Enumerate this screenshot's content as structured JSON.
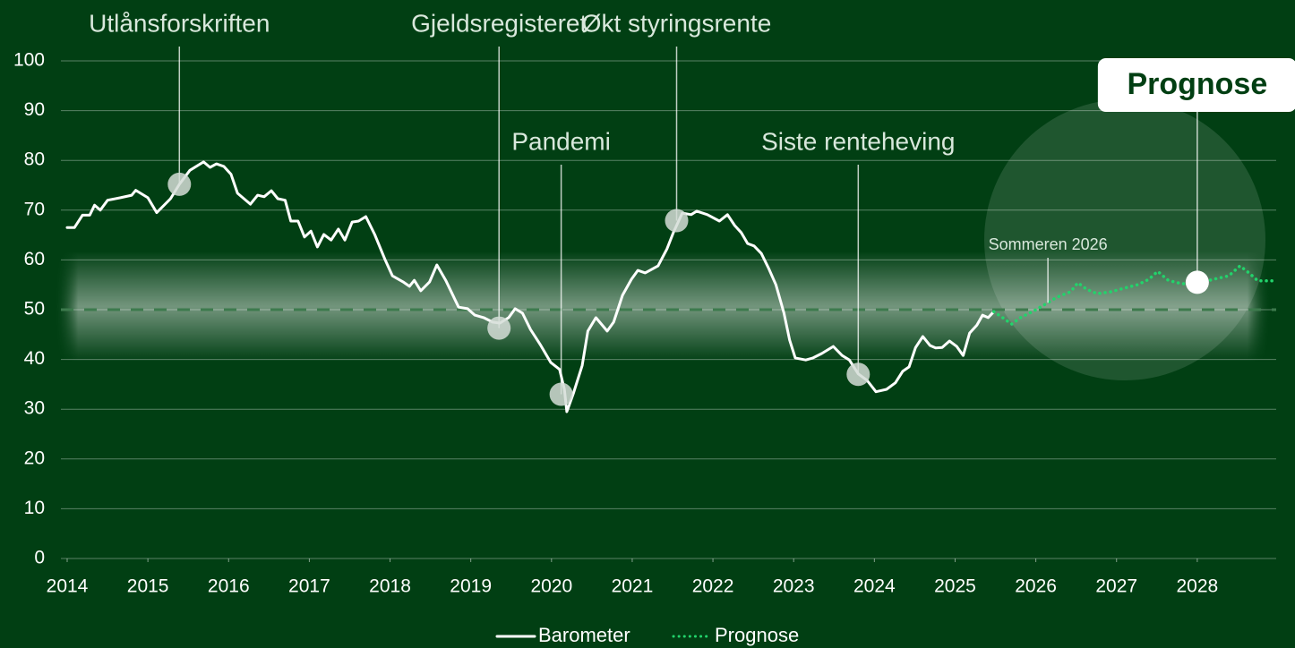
{
  "chart_data": {
    "type": "line",
    "xlim": [
      2014,
      2029
    ],
    "xticks": [
      2014,
      2015,
      2016,
      2017,
      2018,
      2019,
      2020,
      2021,
      2022,
      2023,
      2024,
      2025,
      2026,
      2027,
      2028
    ],
    "ylim": [
      0,
      100
    ],
    "yticks": [
      0,
      10,
      20,
      30,
      40,
      50,
      60,
      70,
      80,
      90,
      100
    ],
    "grid": true,
    "reference_line": 50,
    "series": [
      {
        "name": "Barometer",
        "color": "#ffffff",
        "style": "solid",
        "x": [
          2014.0,
          2014.09,
          2014.19,
          2014.28,
          2014.34,
          2014.41,
          2014.5,
          2014.66,
          2014.8,
          2014.85,
          2015.0,
          2015.11,
          2015.28,
          2015.39,
          2015.52,
          2015.69,
          2015.77,
          2015.85,
          2015.94,
          2016.03,
          2016.11,
          2016.27,
          2016.36,
          2016.44,
          2016.53,
          2016.61,
          2016.7,
          2016.77,
          2016.86,
          2016.94,
          2017.02,
          2017.1,
          2017.18,
          2017.27,
          2017.36,
          2017.44,
          2017.53,
          2017.61,
          2017.7,
          2017.81,
          2017.94,
          2018.03,
          2018.16,
          2018.24,
          2018.3,
          2018.38,
          2018.49,
          2018.58,
          2018.69,
          2018.85,
          2018.96,
          2019.05,
          2019.16,
          2019.27,
          2019.36,
          2019.47,
          2019.55,
          2019.64,
          2019.74,
          2019.86,
          2019.99,
          2020.1,
          2020.16,
          2020.19,
          2020.27,
          2020.38,
          2020.45,
          2020.55,
          2020.69,
          2020.77,
          2020.88,
          2020.99,
          2021.07,
          2021.16,
          2021.32,
          2021.43,
          2021.51,
          2021.62,
          2021.73,
          2021.8,
          2021.93,
          2022.08,
          2022.18,
          2022.27,
          2022.35,
          2022.43,
          2022.51,
          2022.6,
          2022.69,
          2022.78,
          2022.88,
          2022.95,
          2023.02,
          2023.15,
          2023.24,
          2023.35,
          2023.49,
          2023.6,
          2023.69,
          2023.8,
          2023.91,
          2024.02,
          2024.15,
          2024.26,
          2024.35,
          2024.43,
          2024.51,
          2024.6,
          2024.69,
          2024.76,
          2024.84,
          2024.93,
          2025.02,
          2025.1,
          2025.18,
          2025.27,
          2025.34,
          2025.41,
          2025.48
        ],
        "values": [
          66.5,
          66.5,
          69,
          69,
          71,
          70,
          72,
          72.5,
          73,
          74,
          72.5,
          69.5,
          72.3,
          75.2,
          78,
          79.7,
          78.6,
          79.3,
          78.8,
          77.2,
          73.4,
          71.2,
          73,
          72.7,
          73.9,
          72.3,
          72,
          67.8,
          67.8,
          64.6,
          65.8,
          62.6,
          65.1,
          64,
          66.2,
          64,
          67.6,
          67.8,
          68.7,
          65.1,
          60,
          56.8,
          55.6,
          54.7,
          55.9,
          53.8,
          55.6,
          59,
          55.9,
          50.5,
          50.2,
          48.9,
          48.4,
          47.5,
          47.3,
          48.4,
          50.2,
          49.3,
          46,
          43,
          39.4,
          38,
          34,
          29.5,
          33.1,
          38.8,
          45.7,
          48.4,
          45.7,
          47.5,
          52.9,
          56.1,
          57.9,
          57.4,
          58.8,
          62.2,
          65.5,
          69.4,
          69.1,
          69.8,
          69.1,
          67.8,
          69.1,
          66.9,
          65.5,
          63.3,
          62.8,
          61.3,
          58.3,
          55,
          49.3,
          43.9,
          40.3,
          39.9,
          40.3,
          41.2,
          42.6,
          40.8,
          39.9,
          37.1,
          35.8,
          33.5,
          34,
          35.3,
          37.6,
          38.5,
          42.4,
          44.6,
          42.8,
          42.3,
          42.4,
          43.7,
          42.6,
          40.8,
          45.3,
          46.9,
          48.9,
          48.4,
          49.6
        ]
      },
      {
        "name": "Prognose",
        "color": "#22d36b",
        "style": "dotted",
        "x": [
          2025.48,
          2025.59,
          2025.7,
          2025.81,
          2025.98,
          2026.15,
          2026.26,
          2026.43,
          2026.52,
          2026.63,
          2026.76,
          2026.93,
          2027.09,
          2027.26,
          2027.4,
          2027.51,
          2027.64,
          2027.81,
          2028.03,
          2028.2,
          2028.39,
          2028.53,
          2028.64,
          2028.75,
          2028.96
        ],
        "values": [
          49.6,
          48.4,
          47.1,
          48.4,
          49.8,
          51.4,
          52.5,
          53.6,
          55.4,
          54.1,
          53.2,
          53.6,
          54.3,
          55,
          56.1,
          57.7,
          55.9,
          55.2,
          55.4,
          56.1,
          56.8,
          58.8,
          57.4,
          55.8,
          55.8
        ]
      }
    ],
    "annotations": [
      {
        "text": "Utlånsforskriften",
        "x": 2015.39,
        "y": 75.2
      },
      {
        "text": "Gjeldsregisteret",
        "x": 2019.35,
        "y": 46.3
      },
      {
        "text": "Pandemi",
        "x": 2020.12,
        "y": 33
      },
      {
        "text": "Økt styringsrente",
        "x": 2021.55,
        "y": 67.9
      },
      {
        "text": "Siste renteheving",
        "x": 2023.8,
        "y": 37
      },
      {
        "text": "Prognose",
        "x": 2028,
        "y": 55.5
      },
      {
        "text": "Sommeren 2026",
        "x": 2026.15,
        "y": 51.4
      }
    ]
  }
}
